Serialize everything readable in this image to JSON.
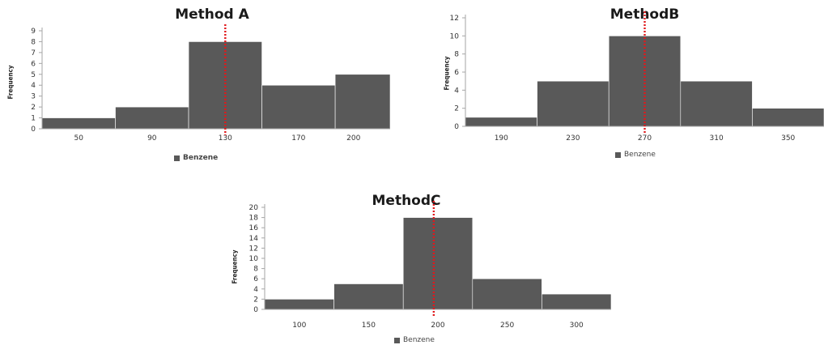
{
  "chart_data": [
    {
      "type": "bar",
      "title": "Method A",
      "ylabel": "Frequency",
      "ylim": [
        0,
        9
      ],
      "yticks": [
        0,
        1,
        2,
        3,
        4,
        5,
        6,
        7,
        8,
        9
      ],
      "xlim": [
        30,
        220
      ],
      "bins": [
        {
          "x0": 30,
          "x1": 70,
          "count": 1
        },
        {
          "x0": 70,
          "x1": 110,
          "count": 2
        },
        {
          "x0": 110,
          "x1": 150,
          "count": 8
        },
        {
          "x0": 150,
          "x1": 190,
          "count": 4
        },
        {
          "x0": 190,
          "x1": 220,
          "count": 5
        }
      ],
      "xtick_values": [
        50,
        90,
        130,
        170,
        200
      ],
      "xtick_labels": [
        "50",
        "90",
        "130",
        "170",
        "200"
      ],
      "reference_line": 130,
      "series": [
        {
          "name": "Benzene"
        }
      ],
      "legend": "bottom"
    },
    {
      "type": "bar",
      "title": "MethodB",
      "ylabel": "Frequency",
      "ylim": [
        0,
        12
      ],
      "yticks": [
        0,
        2,
        4,
        6,
        8,
        10,
        12
      ],
      "xlim": [
        170,
        370
      ],
      "bins": [
        {
          "x0": 170,
          "x1": 210,
          "count": 1
        },
        {
          "x0": 210,
          "x1": 250,
          "count": 5
        },
        {
          "x0": 250,
          "x1": 290,
          "count": 10
        },
        {
          "x0": 290,
          "x1": 330,
          "count": 5
        },
        {
          "x0": 330,
          "x1": 370,
          "count": 2
        }
      ],
      "xtick_values": [
        190,
        230,
        270,
        310,
        350
      ],
      "xtick_labels": [
        "190",
        "230",
        "270",
        "310",
        "350"
      ],
      "reference_line": 270,
      "series": [
        {
          "name": "Benzene"
        }
      ],
      "legend": "bottom"
    },
    {
      "type": "bar",
      "title": "MethodC",
      "ylabel": "Frequency",
      "ylim": [
        0,
        20
      ],
      "yticks": [
        0,
        2,
        4,
        6,
        8,
        10,
        12,
        14,
        16,
        18,
        20
      ],
      "xlim": [
        75,
        325
      ],
      "bins": [
        {
          "x0": 75,
          "x1": 125,
          "count": 2
        },
        {
          "x0": 125,
          "x1": 175,
          "count": 5
        },
        {
          "x0": 175,
          "x1": 225,
          "count": 18
        },
        {
          "x0": 225,
          "x1": 275,
          "count": 6
        },
        {
          "x0": 275,
          "x1": 325,
          "count": 3
        }
      ],
      "xtick_values": [
        100,
        150,
        200,
        250,
        300
      ],
      "xtick_labels": [
        "100",
        "150",
        "200",
        "250",
        "300"
      ],
      "reference_line": 197,
      "series": [
        {
          "name": "Benzene"
        }
      ],
      "legend": "bottom"
    }
  ],
  "colors": {
    "bar": "#595959",
    "bar_edge": "#ffffff",
    "axis": "#a6a6a6",
    "tick_text": "#333333",
    "reference_line": "#e0191c",
    "legend_swatch": "#595959"
  }
}
